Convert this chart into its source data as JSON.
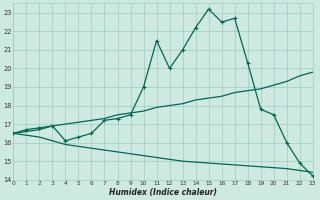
{
  "bg_color": "#ceeae0",
  "grid_color": "#9eccc0",
  "line_color": "#006655",
  "xlabel": "Humidex (Indice chaleur)",
  "xlim": [
    0,
    23
  ],
  "ylim": [
    14,
    23.5
  ],
  "yticks": [
    14,
    15,
    16,
    17,
    18,
    19,
    20,
    21,
    22,
    23
  ],
  "xticks": [
    0,
    1,
    2,
    3,
    4,
    5,
    6,
    7,
    8,
    9,
    10,
    11,
    12,
    13,
    14,
    15,
    16,
    17,
    18,
    19,
    20,
    21,
    22,
    23
  ],
  "curve1_x": [
    0,
    1,
    2,
    3,
    4,
    5,
    6,
    7,
    8,
    9,
    10,
    11,
    12,
    13,
    14,
    15,
    16,
    17,
    18,
    19,
    20,
    21,
    22,
    23
  ],
  "curve1_y": [
    16.5,
    16.7,
    16.8,
    16.9,
    16.1,
    16.3,
    16.5,
    17.2,
    17.3,
    17.5,
    19.0,
    21.5,
    20.0,
    21.0,
    22.2,
    23.2,
    22.5,
    22.7,
    20.3,
    17.8,
    17.5,
    16.0,
    14.9,
    14.2
  ],
  "curve2_x": [
    0,
    1,
    2,
    3,
    4,
    5,
    6,
    7,
    8,
    9,
    10,
    11,
    12,
    13,
    14,
    15,
    16,
    17,
    18,
    19,
    20,
    21,
    22,
    23
  ],
  "curve2_y": [
    16.5,
    16.6,
    16.7,
    16.9,
    17.0,
    17.1,
    17.2,
    17.3,
    17.5,
    17.6,
    17.7,
    17.9,
    18.0,
    18.1,
    18.3,
    18.4,
    18.5,
    18.7,
    18.8,
    18.9,
    19.1,
    19.3,
    19.6,
    19.8
  ],
  "curve3_x": [
    0,
    1,
    2,
    3,
    4,
    5,
    6,
    7,
    8,
    9,
    10,
    11,
    12,
    13,
    14,
    15,
    16,
    17,
    18,
    19,
    20,
    21,
    22,
    23
  ],
  "curve3_y": [
    16.5,
    16.4,
    16.3,
    16.1,
    15.9,
    15.8,
    15.7,
    15.6,
    15.5,
    15.4,
    15.3,
    15.2,
    15.1,
    15.0,
    14.95,
    14.9,
    14.85,
    14.8,
    14.75,
    14.7,
    14.65,
    14.6,
    14.5,
    14.4
  ]
}
